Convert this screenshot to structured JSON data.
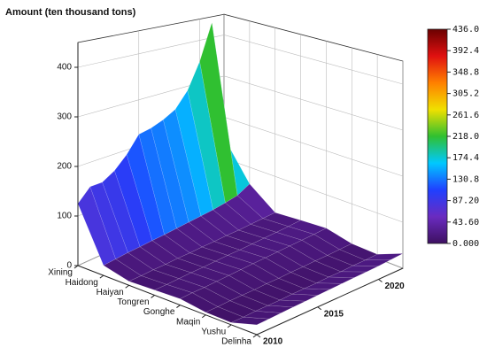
{
  "chart_data": {
    "type": "surface",
    "zlabel": "Amount (ten thousand tons)",
    "categories": [
      "Xining",
      "Haidong",
      "Haiyan",
      "Tongren",
      "Gonghe",
      "Maqin",
      "Yushu",
      "Delinha"
    ],
    "x": [
      2010,
      2011,
      2012,
      2013,
      2014,
      2015,
      2016,
      2017,
      2018,
      2019,
      2020,
      2021,
      2022
    ],
    "xlim": [
      2010,
      2022
    ],
    "xticks": [
      2010,
      2015,
      2020
    ],
    "zlim": [
      0,
      450
    ],
    "zticks": [
      0,
      100,
      200,
      300,
      400
    ],
    "z": [
      [
        125,
        150,
        150,
        165,
        190,
        225,
        230,
        240,
        255,
        290,
        350,
        436,
        150
      ],
      [
        20,
        22,
        24,
        25,
        27,
        28,
        30,
        32,
        34,
        36,
        40,
        45,
        60
      ],
      [
        8,
        8,
        9,
        9,
        10,
        10,
        11,
        11,
        12,
        12,
        13,
        14,
        15
      ],
      [
        10,
        10,
        11,
        12,
        12,
        13,
        14,
        14,
        15,
        16,
        17,
        18,
        20
      ],
      [
        12,
        13,
        13,
        14,
        15,
        16,
        17,
        18,
        19,
        20,
        21,
        22,
        24
      ],
      [
        5,
        5,
        6,
        6,
        6,
        7,
        7,
        8,
        8,
        9,
        9,
        10,
        11
      ],
      [
        4,
        4,
        5,
        5,
        5,
        6,
        6,
        6,
        7,
        7,
        8,
        8,
        9
      ],
      [
        18,
        19,
        20,
        21,
        22,
        23,
        24,
        25,
        26,
        27,
        28,
        30,
        32
      ]
    ],
    "colormap": [
      "#3d1060",
      "#6a2bc0",
      "#2040ff",
      "#00c8ff",
      "#30c030",
      "#f0e000",
      "#ff8000",
      "#e01010",
      "#6a0000"
    ],
    "colorbar": {
      "lim": [
        0,
        436
      ],
      "ticks": [
        {
          "value": 436,
          "label": "436.0"
        },
        {
          "value": 392.4,
          "label": "392.4"
        },
        {
          "value": 348.8,
          "label": "348.8"
        },
        {
          "value": 305.2,
          "label": "305.2"
        },
        {
          "value": 261.6,
          "label": "261.6"
        },
        {
          "value": 218,
          "label": "218.0"
        },
        {
          "value": 174.4,
          "label": "174.4"
        },
        {
          "value": 130.8,
          "label": "130.8"
        },
        {
          "value": 87.2,
          "label": "87.20"
        },
        {
          "value": 43.6,
          "label": "43.60"
        },
        {
          "value": 0,
          "label": "0.000"
        }
      ]
    },
    "grid": true
  }
}
